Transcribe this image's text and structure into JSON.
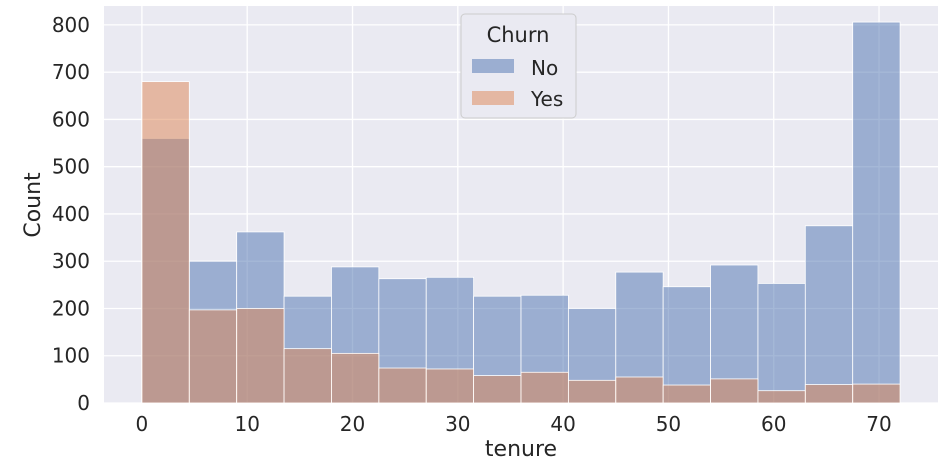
{
  "chart_data": {
    "type": "bar",
    "subtype": "overlaid-histogram",
    "xlabel": "tenure",
    "ylabel": "Count",
    "xlim": [
      -3.6,
      75.6
    ],
    "ylim": [
      0,
      840
    ],
    "xticks": [
      0,
      10,
      20,
      30,
      40,
      50,
      60,
      70
    ],
    "yticks": [
      0,
      100,
      200,
      300,
      400,
      500,
      600,
      700,
      800
    ],
    "bin_edges": [
      0,
      4.5,
      9,
      13.5,
      18,
      22.5,
      27,
      31.5,
      36,
      40.5,
      45,
      49.5,
      54,
      58.5,
      63,
      67.5,
      72
    ],
    "grid": true,
    "legend": {
      "title": "Churn",
      "position": "top-center"
    },
    "series": [
      {
        "name": "No",
        "color": "#4c72b0",
        "values": [
          560,
          300,
          362,
          226,
          288,
          263,
          266,
          226,
          228,
          200,
          277,
          246,
          292,
          253,
          375,
          806
        ]
      },
      {
        "name": "Yes",
        "color": "#dd8452",
        "values": [
          680,
          197,
          200,
          115,
          105,
          74,
          72,
          58,
          65,
          48,
          55,
          38,
          51,
          26,
          39,
          40
        ]
      }
    ]
  }
}
